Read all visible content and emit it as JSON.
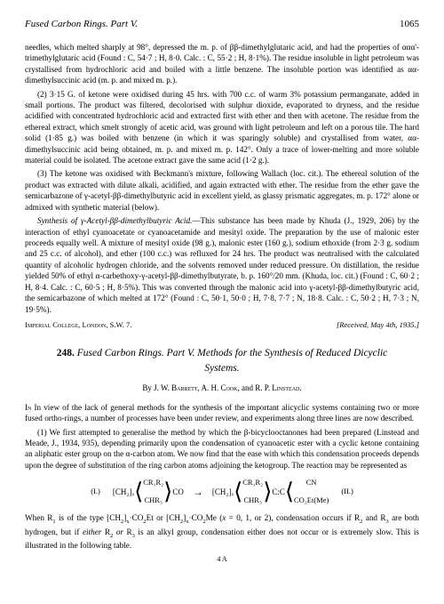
{
  "header": {
    "title": "Fused Carbon Rings. Part V.",
    "page": "1065"
  },
  "para1": "needles, which melted sharply at 98°, depressed the m. p. of ββ-dimethylglutaric acid, and had the properties of ααα'-trimethylglutaric acid (Found : C, 54·7 ; H, 8·0. Calc. : C, 55·2 ; H, 8·1%). The residue insoluble in light petroleum was crystallised from hydrochloric acid and boiled with a little benzene. The insoluble portion was identified as αα-dimethylsuccinic acid (m. p. and mixed m. p.).",
  "para2": "(2) 3·15 G. of ketone were oxidised during 45 hrs. with 700 c.c. of warm 3% potassium permanganate, added in small portions. The product was filtered, decolorised with sulphur dioxide, evaporated to dryness, and the residue acidified with concentrated hydrochloric acid and extracted first with ether and then with acetone. The residue from the ethereal extract, which smelt strongly of acetic acid, was ground with light petroleum and left on a porous tile. The hard solid (1·85 g.) was boiled with benzene (in which it was sparingly soluble) and crystallised from water, αα-dimethylsuccinic acid being obtained, m. p. and mixed m. p. 142°. Only a trace of lower-melting and more soluble material could be isolated. The acetone extract gave the same acid (1·2 g.).",
  "para3": "(3) The ketone was oxidised with Beckmann's mixture, following Wallach (loc. cit.). The ethereal solution of the product was extracted with dilute alkali, acidified, and again extracted with ether. The residue from the ether gave the semicarbazone of γ-acetyl-ββ-dimethylbutyric acid in excellent yield, as glassy prismatic aggregates, m. p. 172° alone or admixed with synthetic material (below).",
  "para4_heading": "Synthesis of γ-Acetyl-ββ-dimethylbutyric Acid.",
  "para4": "—This substance has been made by Khuda (J., 1929, 206) by the interaction of ethyl cyanoacetate or cyanoacetamide and mesityl oxide. The preparation by the use of malonic ester proceeds equally well. A mixture of mesityl oxide (98 g.), malonic ester (160 g.), sodium ethoxide (from 2·3 g. sodium and 25 c.c. of alcohol), and ether (100 c.c.) was refluxed for 24 hrs. The product was neutralised with the calculated quantity of alcoholic hydrogen chloride, and the solvents removed under reduced pressure. On distillation, the residue yielded 50% of ethyl α-carbethoxy-γ-acetyl-ββ-dimethylbutyrate, b. p. 160°/20 mm. (Khuda, loc. cit.) (Found : C, 60·2 ; H, 8·4. Calc. : C, 60·5 ; H, 8·5%). This was converted through the malonic acid into γ-acetyl-ββ-dimethylbutyric acid, the semicarbazone of which melted at 172° (Found : C, 50·1, 50·0 ; H, 7·8, 7·7 ; N, 18·8. Calc. : C, 50·2 ; H, 7·3 ; N, 19·5%).",
  "sig_left": "Imperial College, London, S.W. 7.",
  "sig_right": "[Received, May 4th, 1935.]",
  "article": {
    "num": "248.",
    "title": "Fused Carbon Rings. Part V. Methods for the Synthesis of Reduced Dicyclic Systems.",
    "authors_by": "By",
    "authors": "J. W. Barrett, A. H. Cook,",
    "authors_and": "and",
    "authors2": "R. P. Linstead."
  },
  "para5": "In view of the lack of general methods for the synthesis of the important alicyclic systems containing two or more fused ortho-rings, a number of processes have been under review, and experiments along three lines are now described.",
  "para6": "(1) We first attempted to generalise the method by which the β-bicyclooctanones had been prepared (Linstead and Meade, J., 1934, 935), depending primarily upon the condensation of cyanoacetic ester with a cyclic ketone containing an aliphatic ester group on the α-carbon atom. We now find that the ease with which this condensation proceeds depends upon the degree of substitution of the ring carbon atoms adjoining the ketogroup. The reaction may be represented as",
  "diagram": {
    "label1": "(I.)",
    "label2": "(II.)",
    "top1": "CR₁R₂",
    "mid1": "[CH₂]ₓ",
    "co": "CO",
    "bot1": "CHR₃",
    "arrow": "→",
    "cn": "CN",
    "cc": "C:C",
    "coet": "CO₂Et(Me)"
  },
  "para7": "When R₁ is of the type [CH₂]ₓ·CO₂Et or [CH₂]ₓ·CO₂Me (x = 0, 1, or 2), condensation occurs if R₂ and R₃ are both hydrogen, but if either R₂ or R₃ is an alkyl group, condensation either does not occur or is extremely slow. This is illustrated in the following table.",
  "footer": "4 A"
}
